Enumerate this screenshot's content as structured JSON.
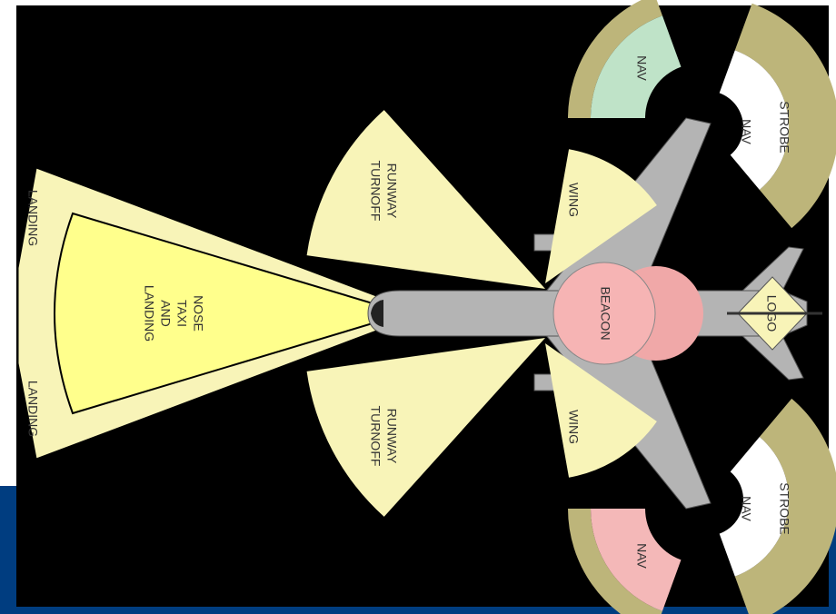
{
  "lights": [
    {
      "lines": [
        "LANDING"
      ]
    },
    {
      "lines": [
        "LANDING"
      ]
    },
    {
      "lines": [
        "NOSE",
        "TAXI",
        "AND",
        "LANDING"
      ]
    },
    {
      "lines": [
        "RUNWAY",
        "TURNOFF"
      ]
    },
    {
      "lines": [
        "RUNWAY",
        "TURNOFF"
      ]
    },
    {
      "lines": [
        "WING"
      ]
    },
    {
      "lines": [
        "WING"
      ]
    },
    {
      "lines": [
        "BEACON"
      ]
    },
    {
      "lines": [
        "LOGO"
      ]
    },
    {
      "lines": [
        "NAV"
      ]
    },
    {
      "lines": [
        "NAV"
      ]
    },
    {
      "lines": [
        "STROBE"
      ]
    },
    {
      "lines": [
        "NAV"
      ]
    },
    {
      "lines": [
        "NAV"
      ]
    },
    {
      "lines": [
        "STROBE"
      ]
    }
  ]
}
